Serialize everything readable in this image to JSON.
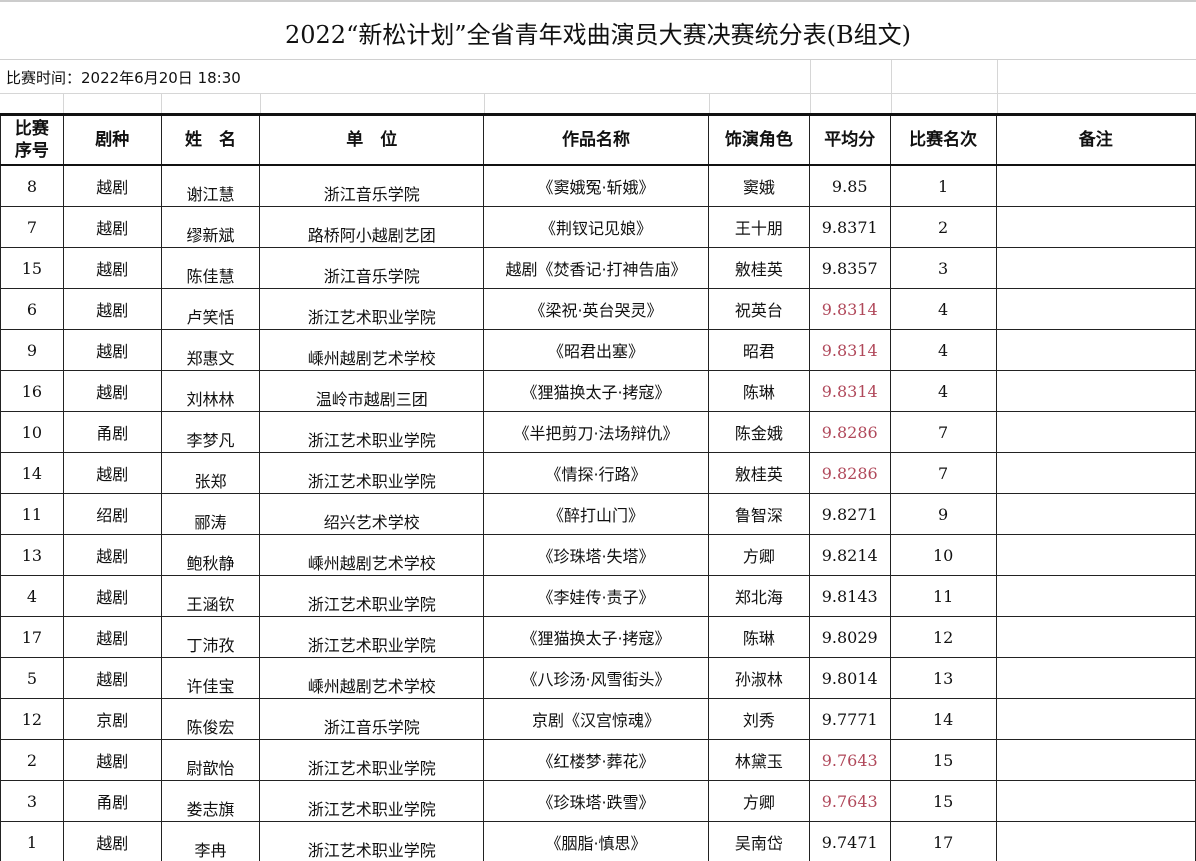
{
  "title": "2022“新松计划”全省青年戏曲演员大赛决赛统分表(B组文)",
  "time_label": "比赛时间：2022年6月20日  18:30",
  "headers": [
    "比赛\n序号",
    "剧种",
    "姓　名",
    "单　位",
    "作品名称",
    "饰演角色",
    "平均分",
    "比赛名次",
    "备注"
  ],
  "highlight_color": "#b0485a",
  "rows": [
    {
      "no": "8",
      "genre": "越剧",
      "name": "谢江慧",
      "unit": "浙江音乐学院",
      "work": "《窦娥冤·斩娥》",
      "role": "窦娥",
      "score": "9.85",
      "rank": "1",
      "note": "",
      "hl": false
    },
    {
      "no": "7",
      "genre": "越剧",
      "name": "缪新斌",
      "unit": "路桥阿小越剧艺团",
      "work": "《荆钗记见娘》",
      "role": "王十朋",
      "score": "9.8371",
      "rank": "2",
      "note": "",
      "hl": false
    },
    {
      "no": "15",
      "genre": "越剧",
      "name": "陈佳慧",
      "unit": "浙江音乐学院",
      "work": "越剧《焚香记·打神告庙》",
      "role": "敫桂英",
      "score": "9.8357",
      "rank": "3",
      "note": "",
      "hl": false
    },
    {
      "no": "6",
      "genre": "越剧",
      "name": "卢笑恬",
      "unit": "浙江艺术职业学院",
      "work": "《梁祝·英台哭灵》",
      "role": "祝英台",
      "score": "9.8314",
      "rank": "4",
      "note": "",
      "hl": true
    },
    {
      "no": "9",
      "genre": "越剧",
      "name": "郑惠文",
      "unit": "嵊州越剧艺术学校",
      "work": "《昭君出塞》",
      "role": "昭君",
      "score": "9.8314",
      "rank": "4",
      "note": "",
      "hl": true
    },
    {
      "no": "16",
      "genre": "越剧",
      "name": "刘林林",
      "unit": "温岭市越剧三团",
      "work": "《狸猫换太子·拷寇》",
      "role": "陈琳",
      "score": "9.8314",
      "rank": "4",
      "note": "",
      "hl": true
    },
    {
      "no": "10",
      "genre": "甬剧",
      "name": "李梦凡",
      "unit": "浙江艺术职业学院",
      "work": "《半把剪刀·法场辩仇》",
      "role": "陈金娥",
      "score": "9.8286",
      "rank": "7",
      "note": "",
      "hl": true
    },
    {
      "no": "14",
      "genre": "越剧",
      "name": "张郑",
      "unit": "浙江艺术职业学院",
      "work": "《情探·行路》",
      "role": "敫桂英",
      "score": "9.8286",
      "rank": "7",
      "note": "",
      "hl": true
    },
    {
      "no": "11",
      "genre": "绍剧",
      "name": "郦涛",
      "unit": "绍兴艺术学校",
      "work": "《醉打山门》",
      "role": "鲁智深",
      "score": "9.8271",
      "rank": "9",
      "note": "",
      "hl": false
    },
    {
      "no": "13",
      "genre": "越剧",
      "name": "鲍秋静",
      "unit": "嵊州越剧艺术学校",
      "work": "《珍珠塔·失塔》",
      "role": "方卿",
      "score": "9.8214",
      "rank": "10",
      "note": "",
      "hl": false
    },
    {
      "no": "4",
      "genre": "越剧",
      "name": "王涵钦",
      "unit": "浙江艺术职业学院",
      "work": "《李娃传·责子》",
      "role": "郑北海",
      "score": "9.8143",
      "rank": "11",
      "note": "",
      "hl": false
    },
    {
      "no": "17",
      "genre": "越剧",
      "name": "丁沛孜",
      "unit": "浙江艺术职业学院",
      "work": "《狸猫换太子·拷寇》",
      "role": "陈琳",
      "score": "9.8029",
      "rank": "12",
      "note": "",
      "hl": false
    },
    {
      "no": "5",
      "genre": "越剧",
      "name": "许佳宝",
      "unit": "嵊州越剧艺术学校",
      "work": "《八珍汤·风雪街头》",
      "role": "孙淑林",
      "score": "9.8014",
      "rank": "13",
      "note": "",
      "hl": false
    },
    {
      "no": "12",
      "genre": "京剧",
      "name": "陈俊宏",
      "unit": "浙江音乐学院",
      "work": "京剧《汉宫惊魂》",
      "role": "刘秀",
      "score": "9.7771",
      "rank": "14",
      "note": "",
      "hl": false
    },
    {
      "no": "2",
      "genre": "越剧",
      "name": "尉歆怡",
      "unit": "浙江艺术职业学院",
      "work": "《红楼梦·葬花》",
      "role": "林黛玉",
      "score": "9.7643",
      "rank": "15",
      "note": "",
      "hl": true
    },
    {
      "no": "3",
      "genre": "甬剧",
      "name": "娄志旗",
      "unit": "浙江艺术职业学院",
      "work": "《珍珠塔·跌雪》",
      "role": "方卿",
      "score": "9.7643",
      "rank": "15",
      "note": "",
      "hl": true
    },
    {
      "no": "1",
      "genre": "越剧",
      "name": "李冉",
      "unit": "浙江艺术职业学院",
      "work": "《胭脂·慎思》",
      "role": "吴南岱",
      "score": "9.7471",
      "rank": "17",
      "note": "",
      "hl": false
    }
  ]
}
